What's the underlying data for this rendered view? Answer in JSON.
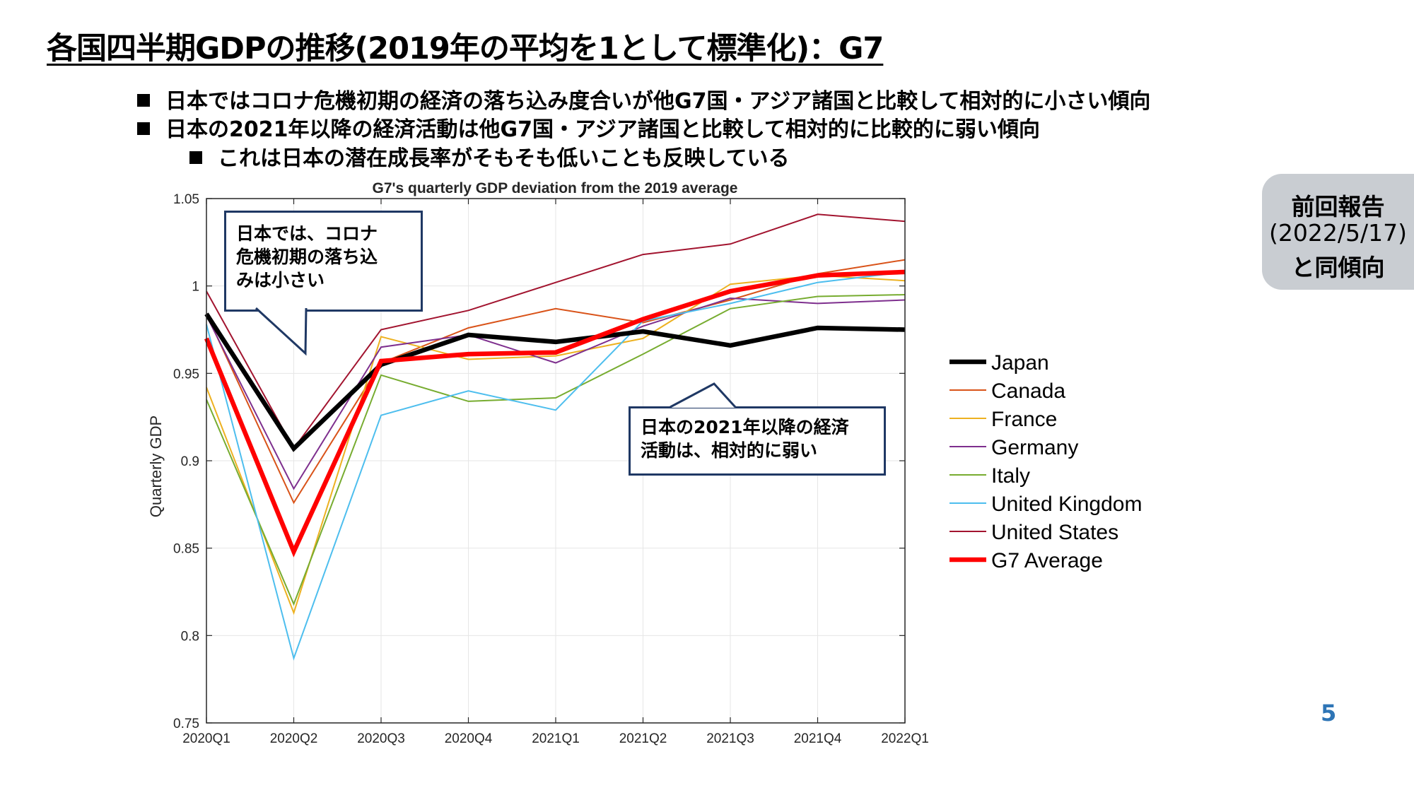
{
  "slide": {
    "title": "各国四半期GDPの推移(2019年の平均を1として標準化)：G7",
    "bullets": [
      "日本ではコロナ危機初期の経済の落ち込み度合いが他G7国・アジア諸国と比較して相対的に小さい傾向",
      "日本の2021年以降の経済活動は他G7国・アジア諸国と比較して相対的に比較的に弱い傾向",
      "これは日本の潜在成長率がそもそも低いことも反映している"
    ],
    "badge": {
      "line1": "前回報告",
      "line2": "(2022/5/17)",
      "line3": "と同傾向"
    },
    "page_number": "5"
  },
  "callouts": {
    "top": {
      "line1": "日本では、コロナ",
      "line2": "危機初期の落ち込",
      "line3": "みは小さい"
    },
    "bottom": {
      "line1": "日本の2021年以降の経済",
      "line2": "活動は、相対的に弱い"
    }
  },
  "chart_data": {
    "type": "line",
    "title": "G7's quarterly GDP deviation from the 2019 average",
    "xlabel": "",
    "ylabel": "Quarterly GDP",
    "categories": [
      "2020Q1",
      "2020Q2",
      "2020Q3",
      "2020Q4",
      "2021Q1",
      "2021Q2",
      "2021Q3",
      "2021Q4",
      "2022Q1"
    ],
    "ylim": [
      0.75,
      1.05
    ],
    "yticks": [
      "0.75",
      "0.8",
      "0.85",
      "0.9",
      "0.95",
      "1",
      "1.05"
    ],
    "grid": true,
    "legend_position": "right",
    "series": [
      {
        "name": "Japan",
        "color": "#000000",
        "width": "thick",
        "values": [
          0.984,
          0.907,
          0.955,
          0.972,
          0.968,
          0.974,
          0.966,
          0.976,
          0.975
        ]
      },
      {
        "name": "Canada",
        "color": "#d95319",
        "width": "thin",
        "values": [
          0.984,
          0.876,
          0.956,
          0.976,
          0.987,
          0.979,
          0.992,
          1.007,
          1.015
        ]
      },
      {
        "name": "France",
        "color": "#edb120",
        "width": "thin",
        "values": [
          0.942,
          0.813,
          0.971,
          0.958,
          0.96,
          0.97,
          1.001,
          1.006,
          1.003
        ]
      },
      {
        "name": "Germany",
        "color": "#7e2f8e",
        "width": "thin",
        "values": [
          0.983,
          0.884,
          0.965,
          0.972,
          0.956,
          0.977,
          0.993,
          0.99,
          0.992
        ]
      },
      {
        "name": "Italy",
        "color": "#77ac30",
        "width": "thin",
        "values": [
          0.935,
          0.818,
          0.949,
          0.934,
          0.936,
          0.961,
          0.987,
          0.994,
          0.995
        ]
      },
      {
        "name": "United Kingdom",
        "color": "#4dbeee",
        "width": "thin",
        "values": [
          0.978,
          0.787,
          0.926,
          0.94,
          0.929,
          0.98,
          0.99,
          1.002,
          1.008
        ]
      },
      {
        "name": "United States",
        "color": "#a2142f",
        "width": "thin",
        "values": [
          0.997,
          0.907,
          0.975,
          0.986,
          1.002,
          1.018,
          1.024,
          1.041,
          1.037
        ]
      },
      {
        "name": "G7 Average",
        "color": "#ff0000",
        "width": "thick",
        "values": [
          0.97,
          0.848,
          0.957,
          0.961,
          0.962,
          0.981,
          0.997,
          1.006,
          1.008
        ]
      }
    ]
  }
}
